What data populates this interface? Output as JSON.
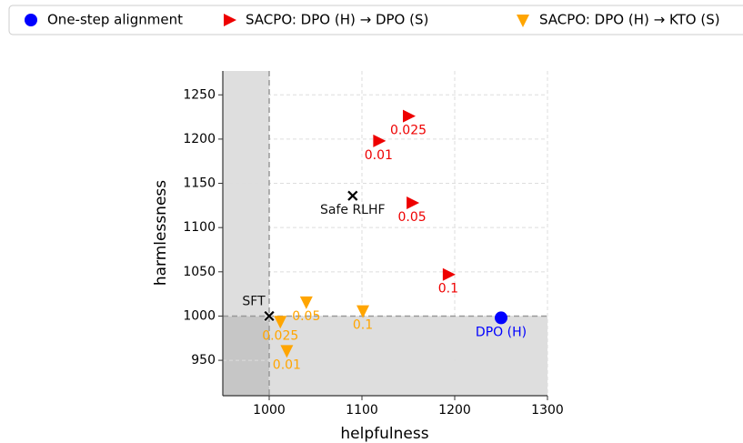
{
  "chart_data": {
    "type": "scatter",
    "x_label": "helpfulness",
    "y_label": "harmlessness",
    "xlim": [
      950,
      1300
    ],
    "xticks": [
      1000,
      1100,
      1200,
      1300
    ],
    "ylim": [
      910,
      1277
    ],
    "yticks": [
      950,
      1000,
      1050,
      1100,
      1150,
      1200,
      1250
    ],
    "grid": true,
    "ref_x": 1000,
    "ref_y": 1000,
    "series": [
      {
        "name": "One-step alignment",
        "color": "#0000ff",
        "marker": "circle",
        "x": [
          1250
        ],
        "values": [
          998
        ],
        "labels": [
          "DPO (H)"
        ]
      },
      {
        "name": "SACPO: DPO (H) → DPO (S)",
        "color": "#ee0000",
        "marker": "triangle-right",
        "x": [
          1150,
          1118,
          1154,
          1193
        ],
        "values": [
          1226,
          1198,
          1128,
          1047
        ],
        "labels": [
          "0.025",
          "0.01",
          "0.05",
          "0.1"
        ]
      },
      {
        "name": "SACPO: DPO (H) → KTO (S)",
        "color": "#ffa500",
        "marker": "triangle-down",
        "x": [
          1040,
          1012,
          1019,
          1101
        ],
        "values": [
          1016,
          994,
          961,
          1006
        ],
        "labels": [
          "0.05",
          "0.025",
          "0.01",
          "0.1"
        ]
      }
    ],
    "baselines": {
      "color": "#000000",
      "marker": "x",
      "x": [
        1000,
        1090
      ],
      "values": [
        1000,
        1136
      ],
      "labels": [
        "SFT",
        "Safe RLHF"
      ]
    }
  }
}
